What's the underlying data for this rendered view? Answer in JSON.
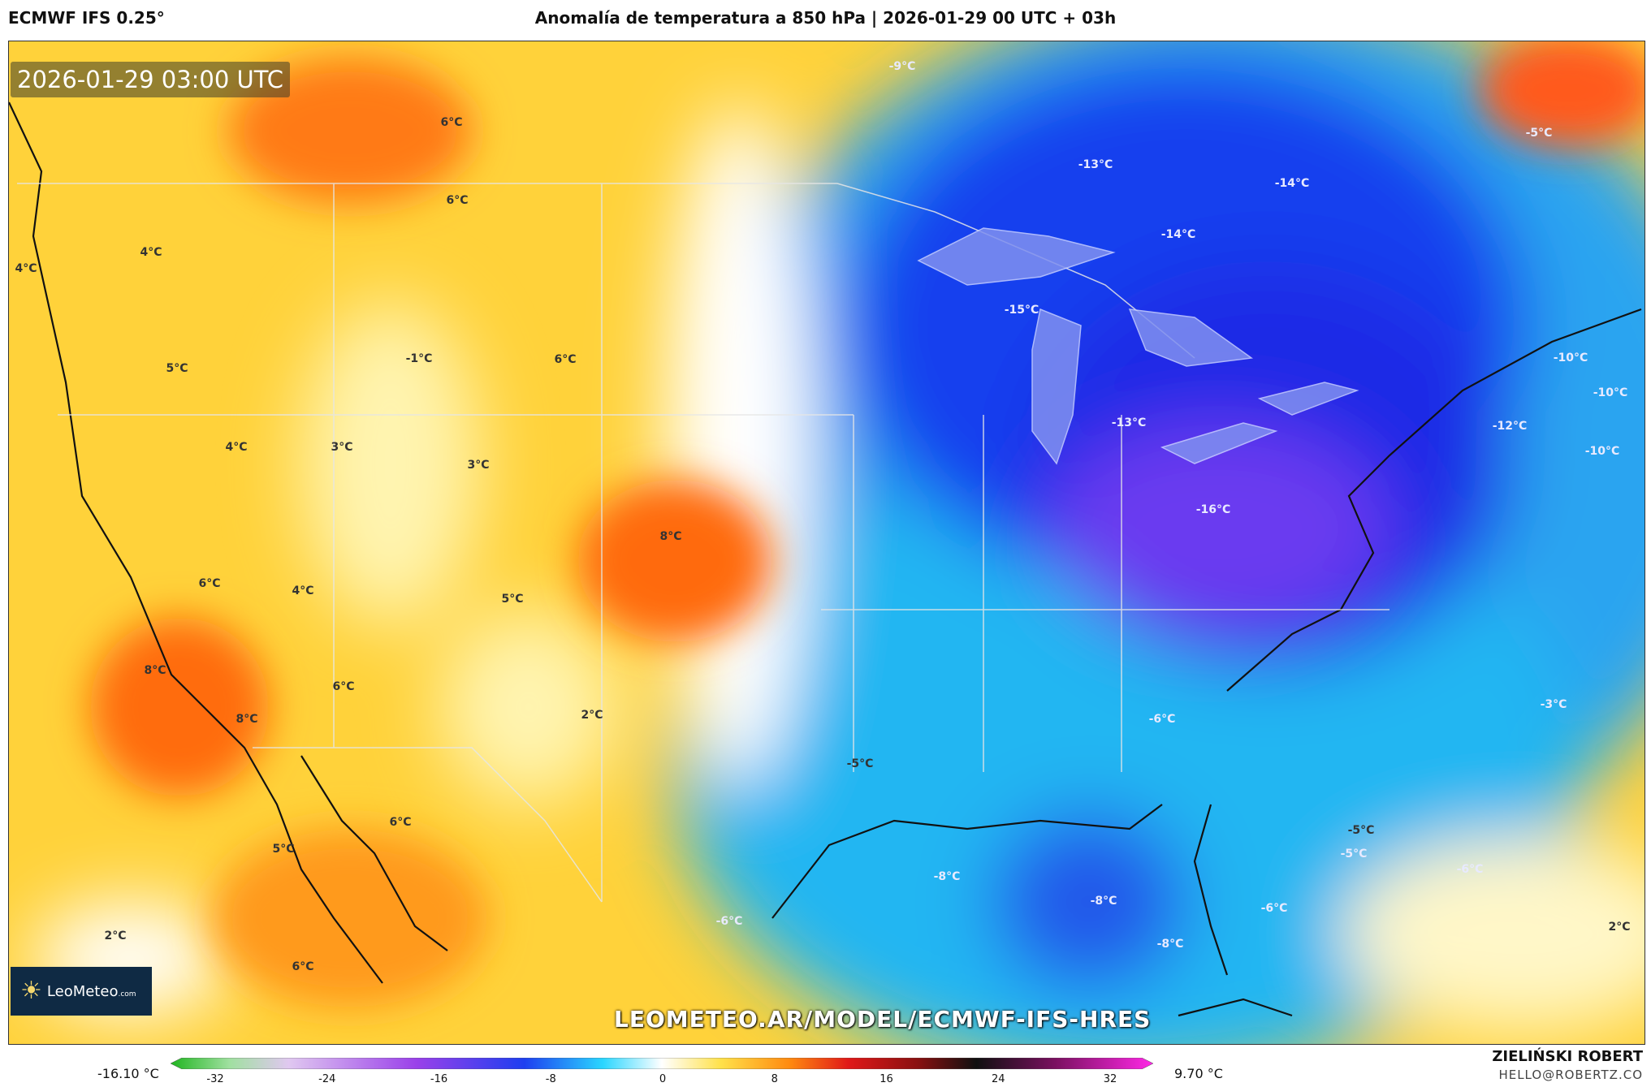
{
  "header": {
    "model": "ECMWF IFS 0.25°",
    "title": "Anomalía de temperatura a 850 hPa | 2026-01-29 00 UTC + 03h"
  },
  "map": {
    "timestamp": "2026-01-29 03:00 UTC",
    "watermark_url": "LEOMETEO.AR/MODEL/ECMWF-IFS-HRES",
    "logo_text": "LeoMeteo",
    "logo_suffix": ".com",
    "labels": [
      {
        "text": "-9°C",
        "cold": true
      },
      {
        "text": "6°C",
        "cold": false
      },
      {
        "text": "6°C",
        "cold": false
      },
      {
        "text": "4°C",
        "cold": false
      },
      {
        "text": "4°C",
        "cold": false
      },
      {
        "text": "5°C",
        "cold": false
      },
      {
        "text": "-1°C",
        "cold": false
      },
      {
        "text": "6°C",
        "cold": false
      },
      {
        "text": "4°C",
        "cold": false
      },
      {
        "text": "3°C",
        "cold": false
      },
      {
        "text": "3°C",
        "cold": false
      },
      {
        "text": "8°C",
        "cold": false
      },
      {
        "text": "6°C",
        "cold": false
      },
      {
        "text": "4°C",
        "cold": false
      },
      {
        "text": "5°C",
        "cold": false
      },
      {
        "text": "8°C",
        "cold": false
      },
      {
        "text": "6°C",
        "cold": false
      },
      {
        "text": "8°C",
        "cold": false
      },
      {
        "text": "2°C",
        "cold": false
      },
      {
        "text": "6°C",
        "cold": false
      },
      {
        "text": "5°C",
        "cold": false
      },
      {
        "text": "2°C",
        "cold": false
      },
      {
        "text": "6°C",
        "cold": false
      },
      {
        "text": "-5°C",
        "cold": false
      },
      {
        "text": "-13°C",
        "cold": true
      },
      {
        "text": "-14°C",
        "cold": true
      },
      {
        "text": "-14°C",
        "cold": true
      },
      {
        "text": "-15°C",
        "cold": true
      },
      {
        "text": "-13°C",
        "cold": true
      },
      {
        "text": "-16°C",
        "cold": true
      },
      {
        "text": "-12°C",
        "cold": true
      },
      {
        "text": "-10°C",
        "cold": true
      },
      {
        "text": "-10°C",
        "cold": true
      },
      {
        "text": "-10°C",
        "cold": true
      },
      {
        "text": "-5°C",
        "cold": true
      },
      {
        "text": "-6°C",
        "cold": true
      },
      {
        "text": "-5°C",
        "cold": false
      },
      {
        "text": "-3°C",
        "cold": true
      },
      {
        "text": "-5°C",
        "cold": true
      },
      {
        "text": "-6°C",
        "cold": true
      },
      {
        "text": "-8°C",
        "cold": true
      },
      {
        "text": "-8°C",
        "cold": true
      },
      {
        "text": "-8°C",
        "cold": true
      },
      {
        "text": "-6°C",
        "cold": true
      },
      {
        "text": "-6°C",
        "cold": true
      },
      {
        "text": "2°C",
        "cold": false
      }
    ]
  },
  "legend": {
    "min_label": "-16.10 °C",
    "max_label": "9.70 °C",
    "ticks": [
      "-32",
      "-24",
      "-16",
      "-8",
      "0",
      "8",
      "16",
      "24",
      "32"
    ]
  },
  "credit": {
    "name": "ZIELIŃSKI ROBERT",
    "email": "HELLO@ROBERTZ.CO"
  }
}
